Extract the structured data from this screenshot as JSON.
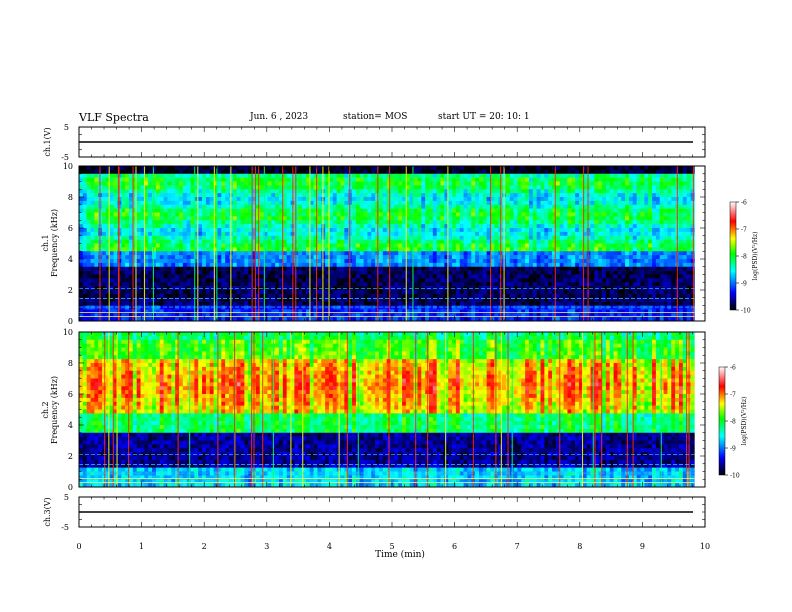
{
  "header": {
    "title": "VLF Spectra",
    "date": "Jun. 6 , 2023",
    "station": "station= MOS",
    "start": "start UT =  20: 10: 1"
  },
  "chart_data": [
    {
      "type": "line",
      "name": "ch1-waveform",
      "ylabel": "ch.1(V)",
      "ylim": [
        -5,
        5
      ],
      "yticks": [
        "5",
        "-5"
      ],
      "xlim": [
        0,
        10
      ],
      "values": [
        0,
        0
      ]
    },
    {
      "type": "heatmap",
      "name": "ch1-spectrogram",
      "ylabel": "ch.1\nFrequency (kHz)",
      "ylim": [
        0,
        10
      ],
      "yticks": [
        "0",
        "2",
        "4",
        "6",
        "8",
        "10"
      ],
      "xlim": [
        0,
        9.83
      ],
      "colorbar": {
        "label": "log(PSD)(V²/Hz)",
        "range": [
          -10,
          -6
        ],
        "ticks": [
          "-6",
          "-7",
          "-8",
          "-9",
          "-10"
        ]
      }
    },
    {
      "type": "heatmap",
      "name": "ch2-spectrogram",
      "ylabel": "ch.2\nFrequency (kHz)",
      "ylim": [
        0,
        10
      ],
      "yticks": [
        "0",
        "2",
        "4",
        "6",
        "8",
        "10"
      ],
      "xlim": [
        0,
        9.83
      ],
      "colorbar": {
        "label": "log(PSD)(V²/Hz)",
        "range": [
          -10,
          -6
        ],
        "ticks": [
          "-6",
          "-7",
          "-8",
          "-9",
          "-10"
        ]
      }
    },
    {
      "type": "line",
      "name": "ch3-waveform",
      "ylabel": "ch.3(V)",
      "ylim": [
        -5,
        5
      ],
      "yticks": [
        "5",
        "-5"
      ],
      "xlim": [
        0,
        10
      ],
      "values": [
        0,
        0
      ]
    }
  ],
  "xaxis": {
    "label": "Time (min)",
    "range": [
      0,
      10
    ],
    "ticks": [
      "0",
      "1",
      "2",
      "3",
      "4",
      "5",
      "6",
      "7",
      "8",
      "9",
      "10"
    ]
  },
  "colors": {
    "colormap": [
      "#000000",
      "#0000ff",
      "#00ffff",
      "#00ff00",
      "#ffff00",
      "#ff0000",
      "#ffffff"
    ]
  }
}
